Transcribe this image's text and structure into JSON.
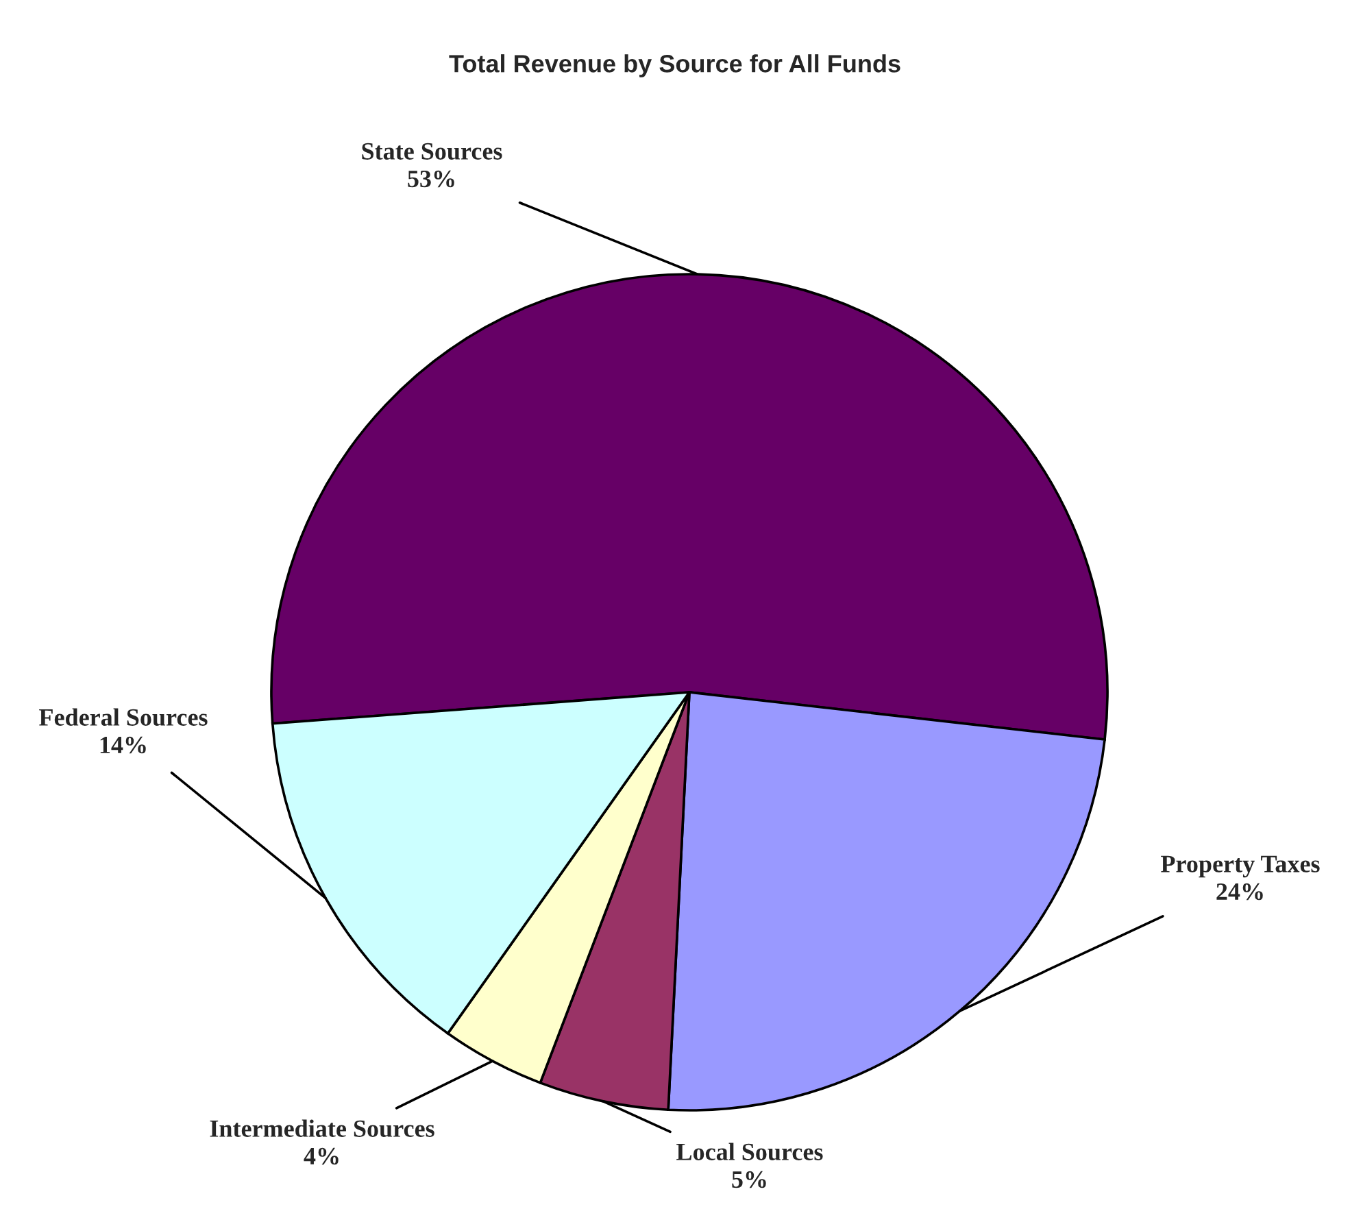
{
  "chart_data": {
    "type": "pie",
    "title": "Total Revenue by Source for All Funds",
    "categories": [
      "State Sources",
      "Property Taxes",
      "Local Sources",
      "Intermediate Sources",
      "Federal Sources"
    ],
    "values": [
      53,
      24,
      5,
      4,
      14
    ],
    "colors": [
      "#660066",
      "#9999ff",
      "#993366",
      "#ffffcc",
      "#ccffff"
    ],
    "value_labels": [
      "53%",
      "24%",
      "5%",
      "4%",
      "14%"
    ]
  }
}
